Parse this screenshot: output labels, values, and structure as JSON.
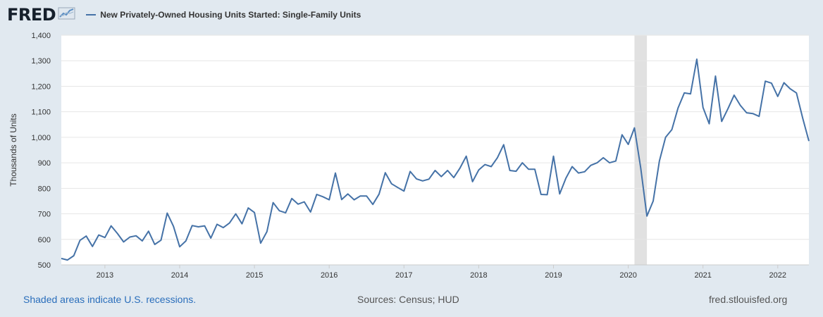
{
  "brand": {
    "logo_text": "FRED",
    "logo_icon": "line-graph-icon"
  },
  "legend": {
    "series_label": "New Privately-Owned Housing Units Started: Single-Family Units",
    "color": "#4572a7"
  },
  "footer": {
    "recession_note": "Shaded areas indicate U.S. recessions.",
    "sources": "Sources: Census; HUD",
    "site": "fred.stlouisfed.org"
  },
  "colors": {
    "background": "#e1e9f0",
    "plot_background": "#ffffff",
    "gridline": "#e6e6e6",
    "recession_shade": "#e1e1e1",
    "link": "#2a6ebb"
  },
  "chart_data": {
    "type": "line",
    "title": "",
    "ylabel": "Thousands of Units",
    "xlabel": "",
    "ylim": [
      500,
      1400
    ],
    "xlim": [
      "2012-06",
      "2022-06"
    ],
    "y_ticks": [
      "500",
      "600",
      "700",
      "800",
      "900",
      "1,000",
      "1,100",
      "1,200",
      "1,300",
      "1,400"
    ],
    "x_ticks": [
      "2013",
      "2014",
      "2015",
      "2016",
      "2017",
      "2018",
      "2019",
      "2020",
      "2021",
      "2022"
    ],
    "grid": true,
    "legend_position": "top-left",
    "recessions": [
      {
        "start": "2020-02",
        "end": "2020-04"
      }
    ],
    "series": [
      {
        "name": "New Privately-Owned Housing Units Started: Single-Family Units",
        "x": [
          "2012-06",
          "2012-07",
          "2012-08",
          "2012-09",
          "2012-10",
          "2012-11",
          "2012-12",
          "2013-01",
          "2013-02",
          "2013-03",
          "2013-04",
          "2013-05",
          "2013-06",
          "2013-07",
          "2013-08",
          "2013-09",
          "2013-10",
          "2013-11",
          "2013-12",
          "2014-01",
          "2014-02",
          "2014-03",
          "2014-04",
          "2014-05",
          "2014-06",
          "2014-07",
          "2014-08",
          "2014-09",
          "2014-10",
          "2014-11",
          "2014-12",
          "2015-01",
          "2015-02",
          "2015-03",
          "2015-04",
          "2015-05",
          "2015-06",
          "2015-07",
          "2015-08",
          "2015-09",
          "2015-10",
          "2015-11",
          "2015-12",
          "2016-01",
          "2016-02",
          "2016-03",
          "2016-04",
          "2016-05",
          "2016-06",
          "2016-07",
          "2016-08",
          "2016-09",
          "2016-10",
          "2016-11",
          "2016-12",
          "2017-01",
          "2017-02",
          "2017-03",
          "2017-04",
          "2017-05",
          "2017-06",
          "2017-07",
          "2017-08",
          "2017-09",
          "2017-10",
          "2017-11",
          "2017-12",
          "2018-01",
          "2018-02",
          "2018-03",
          "2018-04",
          "2018-05",
          "2018-06",
          "2018-07",
          "2018-08",
          "2018-09",
          "2018-10",
          "2018-11",
          "2018-12",
          "2019-01",
          "2019-02",
          "2019-03",
          "2019-04",
          "2019-05",
          "2019-06",
          "2019-07",
          "2019-08",
          "2019-09",
          "2019-10",
          "2019-11",
          "2019-12",
          "2020-01",
          "2020-02",
          "2020-03",
          "2020-04",
          "2020-05",
          "2020-06",
          "2020-07",
          "2020-08",
          "2020-09",
          "2020-10",
          "2020-11",
          "2020-12",
          "2021-01",
          "2021-02",
          "2021-03",
          "2021-04",
          "2021-05",
          "2021-06",
          "2021-07",
          "2021-08",
          "2021-09",
          "2021-10",
          "2021-11",
          "2021-12",
          "2022-01",
          "2022-02",
          "2022-03",
          "2022-04",
          "2022-05",
          "2022-06"
        ],
        "values": [
          525,
          519,
          536,
          596,
          613,
          572,
          617,
          607,
          653,
          623,
          590,
          609,
          614,
          594,
          632,
          580,
          597,
          703,
          651,
          571,
          594,
          654,
          649,
          653,
          605,
          659,
          646,
          664,
          700,
          661,
          723,
          705,
          585,
          630,
          744,
          712,
          704,
          760,
          738,
          747,
          707,
          776,
          767,
          755,
          860,
          756,
          778,
          755,
          770,
          770,
          737,
          777,
          861,
          818,
          803,
          789,
          866,
          837,
          829,
          836,
          870,
          846,
          870,
          842,
          880,
          926,
          826,
          872,
          893,
          885,
          920,
          971,
          870,
          867,
          900,
          875,
          875,
          776,
          775,
          926,
          778,
          840,
          885,
          860,
          865,
          890,
          900,
          920,
          900,
          907,
          1010,
          972,
          1037,
          880,
          691,
          750,
          907,
          1000,
          1030,
          1115,
          1174,
          1170,
          1306,
          1117,
          1053,
          1240,
          1062,
          1112,
          1165,
          1125,
          1096,
          1093,
          1082,
          1220,
          1212,
          1160,
          1214,
          1190,
          1174,
          1075,
          985
        ]
      }
    ]
  }
}
